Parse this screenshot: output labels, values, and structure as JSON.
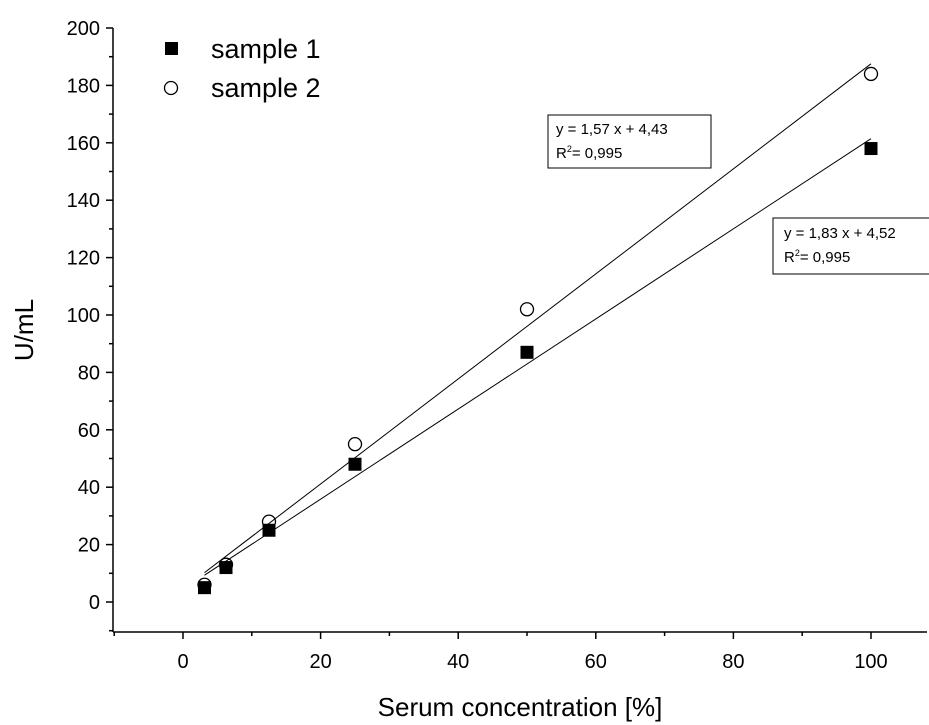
{
  "chart_data": {
    "type": "scatter",
    "title": "",
    "xlabel": "Serum concentration [%]",
    "ylabel": "U/mL",
    "xlim": [
      -10,
      110
    ],
    "ylim": [
      -10,
      200
    ],
    "x_ticks": [
      0,
      20,
      40,
      60,
      80,
      100
    ],
    "y_ticks": [
      0,
      20,
      40,
      60,
      80,
      100,
      120,
      140,
      160,
      180,
      200
    ],
    "grid": false,
    "legend_position": "top-left",
    "series": [
      {
        "name": "sample 1",
        "marker": "filled-square",
        "color": "#000000",
        "x": [
          3.125,
          6.25,
          12.5,
          25,
          50,
          100
        ],
        "y": [
          5,
          12,
          25,
          48,
          87,
          158
        ],
        "fit": {
          "slope": 1.57,
          "intercept": 4.43,
          "x_range": [
            3.125,
            100
          ]
        }
      },
      {
        "name": "sample 2",
        "marker": "open-circle",
        "color": "#000000",
        "x": [
          3.125,
          6.25,
          12.5,
          25,
          50,
          100
        ],
        "y": [
          6,
          13,
          28,
          55,
          102,
          184
        ],
        "fit": {
          "slope": 1.83,
          "intercept": 4.52,
          "x_range": [
            3.125,
            100
          ]
        }
      }
    ],
    "annotations": [
      {
        "line1": "y = 1,57 x + 4,43",
        "line2_prefix": "R",
        "line2_sup": "2",
        "line2_rest": "= 0,995"
      },
      {
        "line1": "y = 1,83 x + 4,52",
        "line2_prefix": "R",
        "line2_sup": "2",
        "line2_rest": "= 0,995"
      }
    ]
  }
}
